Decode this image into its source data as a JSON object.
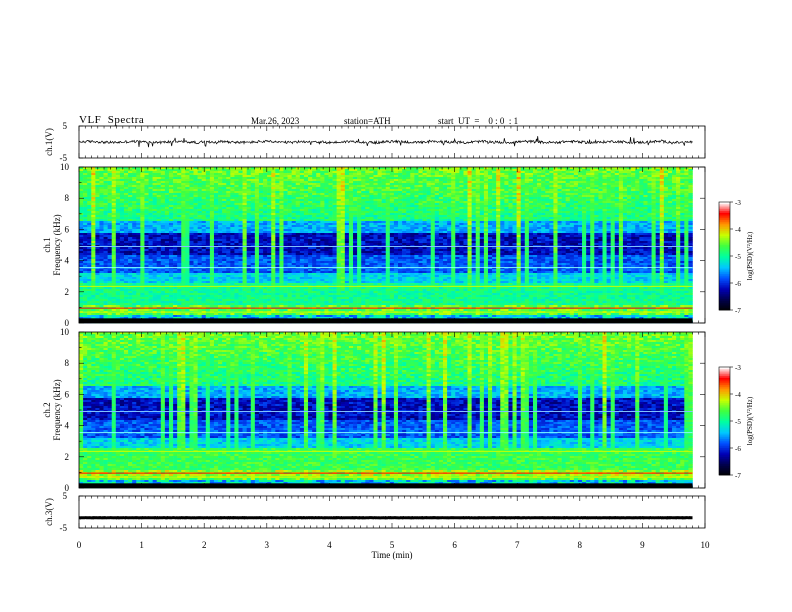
{
  "header": {
    "title": "VLF  Spectra",
    "date": "Mar.26, 2023",
    "station": "station=ATH",
    "start": "start  UT  =    0 : 0  : 1"
  },
  "chart_data": [
    {
      "type": "line",
      "panel": "ch.1 waveform",
      "ylabel": "ch.1(V)",
      "ylim": [
        -5,
        5
      ],
      "yticks": [
        "5",
        "-5"
      ],
      "baseline_value": 0,
      "noise_amplitude": 0.4,
      "spike_amplitude": 1.5
    },
    {
      "type": "heatmap",
      "panel": "ch.1 spectrogram",
      "ylabel_lines": [
        "ch.1",
        "Frequency (kHz)"
      ],
      "ylim": [
        0,
        10
      ],
      "yticks": [
        "0",
        "2",
        "4",
        "6",
        "8",
        "10"
      ],
      "colorbar": {
        "label": "log(PSD)(V²/Hz)",
        "ticks": [
          "-3",
          "-4",
          "-5",
          "-6",
          "-7"
        ],
        "range": [
          -7,
          -3
        ]
      }
    },
    {
      "type": "heatmap",
      "panel": "ch.2 spectrogram",
      "ylabel_lines": [
        "ch.2",
        "Frequency (kHz)"
      ],
      "ylim": [
        0,
        10
      ],
      "yticks": [
        "0",
        "2",
        "4",
        "6",
        "8",
        "10"
      ],
      "colorbar": {
        "label": "log(PSD)(V²/Hz)",
        "ticks": [
          "-3",
          "-4",
          "-5",
          "-6",
          "-7"
        ],
        "range": [
          -7,
          -3
        ]
      }
    },
    {
      "type": "line",
      "panel": "ch.3 waveform",
      "ylabel": "ch.3(V)",
      "ylim": [
        -5,
        5
      ],
      "yticks": [
        "5",
        "-5"
      ],
      "baseline_value": -1.8,
      "noise_amplitude": 0.05
    }
  ],
  "xaxis": {
    "label": "Time  (min)",
    "range": [
      0,
      10
    ],
    "ticks": [
      "0",
      "1",
      "2",
      "3",
      "4",
      "5",
      "6",
      "7",
      "8",
      "9",
      "10"
    ],
    "data_end_min": 9.8
  },
  "colormap": [
    "#000000",
    "#00004a",
    "#0000b4",
    "#0050ff",
    "#00c8ff",
    "#00ffa0",
    "#40ff40",
    "#c8ff00",
    "#ff9600",
    "#ff0000",
    "#ffffff"
  ]
}
